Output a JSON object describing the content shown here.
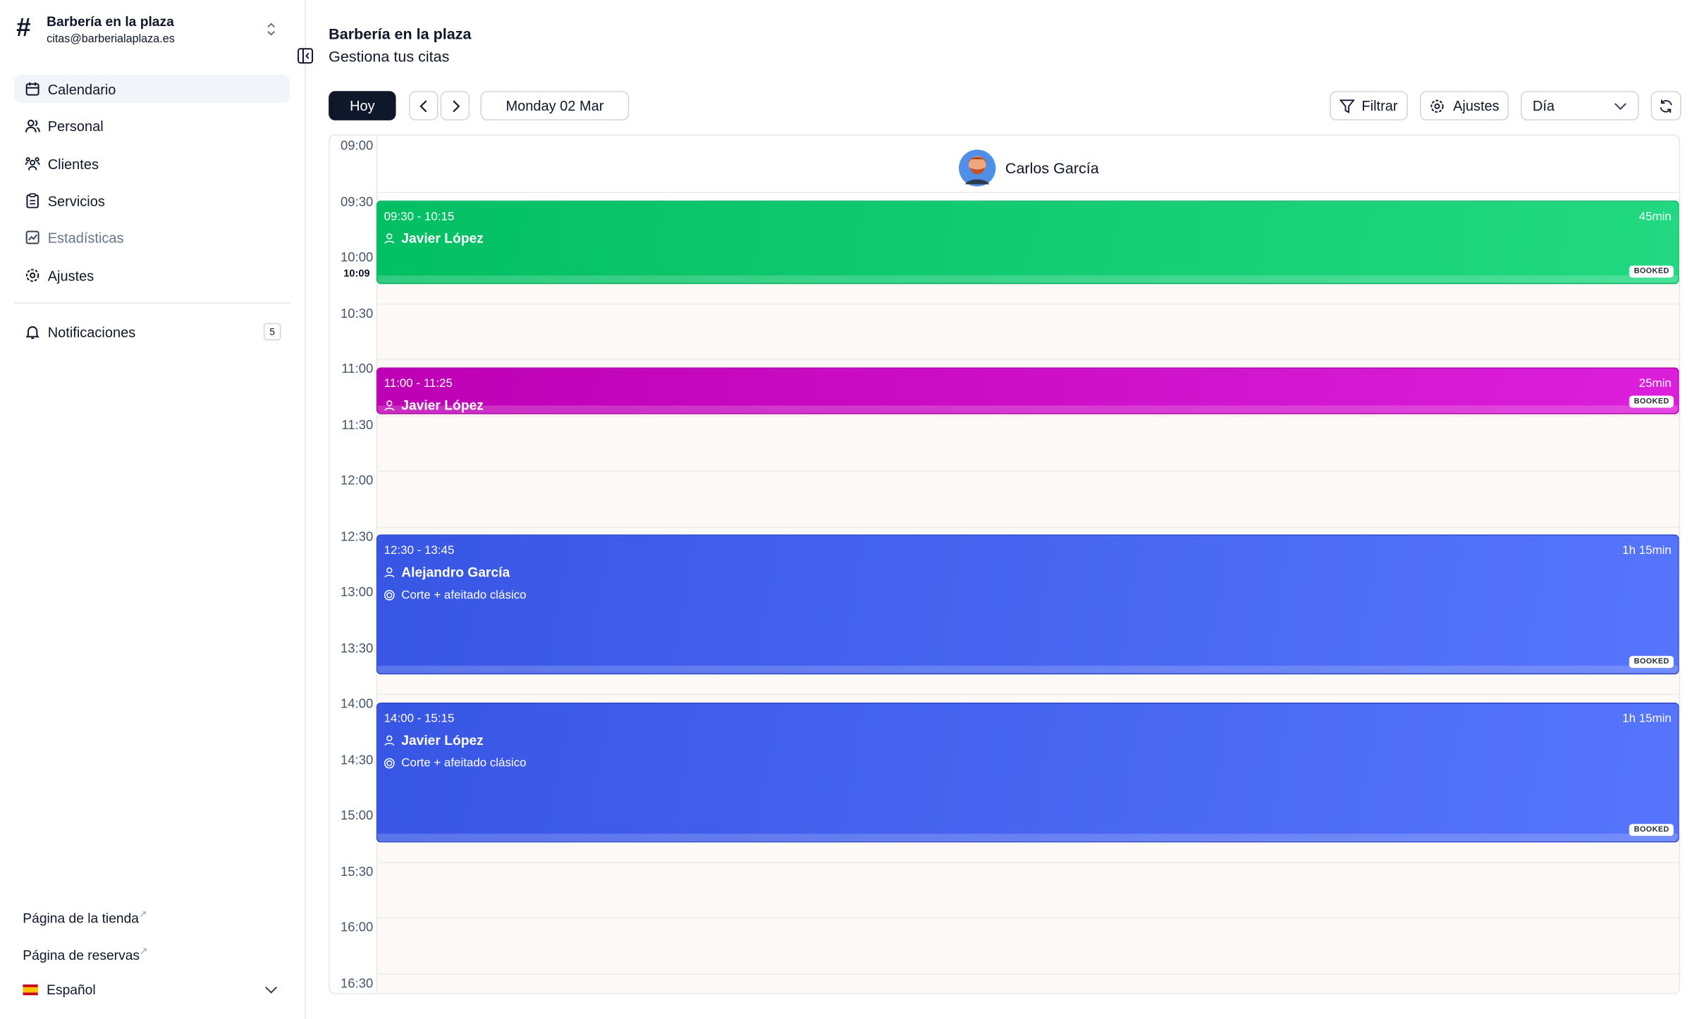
{
  "sidebar": {
    "business_name": "Barbería en la plaza",
    "email": "citas@barberialaplaza.es",
    "nav": [
      "Calendario",
      "Personal",
      "Clientes",
      "Servicios",
      "Estadísticas",
      "Ajustes"
    ],
    "notifications": {
      "label": "Notificaciones",
      "count": 5
    },
    "links": [
      "Página de la tienda",
      "Página de reservas"
    ],
    "language": "Español"
  },
  "header": {
    "title": "Barbería en la plaza",
    "subtitle": "Gestiona tus citas"
  },
  "toolbar": {
    "today": "Hoy",
    "date": "Monday 02 Mar",
    "filter": "Filtrar",
    "settings": "Ajustes",
    "view": "Día"
  },
  "calendar": {
    "staff": "Carlos García",
    "times": [
      "09:00",
      "09:30",
      "10:00",
      "10:30",
      "11:00",
      "11:30",
      "12:00",
      "12:30",
      "13:00",
      "13:30",
      "14:00",
      "14:30",
      "15:00",
      "15:30",
      "16:00",
      "16:30"
    ],
    "current_time": "10:09",
    "appointments": [
      {
        "time": "09:30 - 10:15",
        "duration": "45min",
        "client": "Javier López",
        "status": "BOOKED"
      },
      {
        "time": "11:00 - 11:25",
        "duration": "25min",
        "client": "Javier López",
        "status": "BOOKED"
      },
      {
        "time": "12:30 - 13:45",
        "duration": "1h 15min",
        "client": "Alejandro García",
        "service": "Corte + afeitado clásico",
        "status": "BOOKED"
      },
      {
        "time": "14:00 - 15:15",
        "duration": "1h 15min",
        "client": "Javier López",
        "service": "Corte + afeitado clásico",
        "status": "BOOKED"
      }
    ]
  }
}
